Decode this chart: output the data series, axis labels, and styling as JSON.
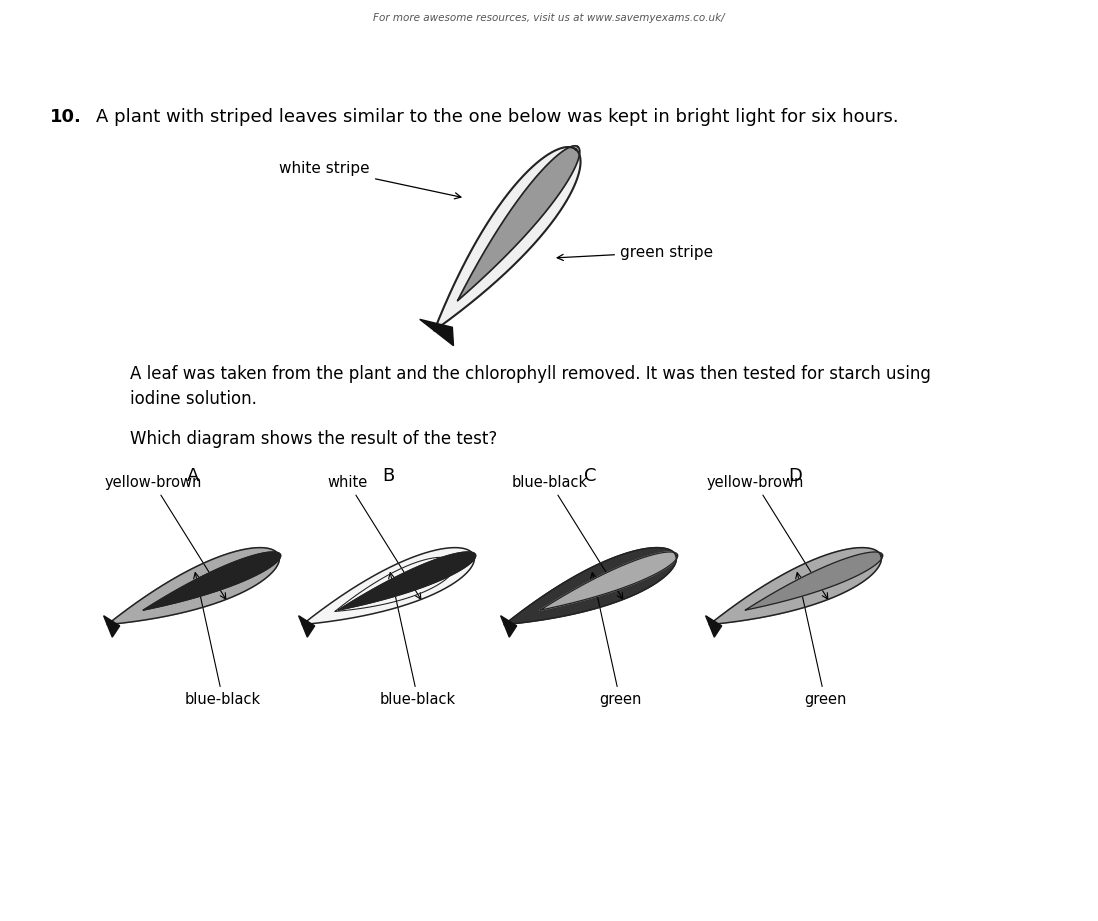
{
  "header_text": "For more awesome resources, visit us at www.savemyexams.co.uk/",
  "question_number": "10.",
  "question_text": "A plant with striped leaves similar to the one below was kept in bright light for six hours.",
  "para1": "A leaf was taken from the plant and the chlorophyll removed. It was then tested for starch using\niodine solution.",
  "para2": "Which diagram shows the result of the test?",
  "label_white_stripe": "white stripe",
  "label_green_stripe": "green stripe",
  "options": [
    "A",
    "B",
    "C",
    "D"
  ],
  "option_labels_top": [
    "yellow-brown",
    "white",
    "blue-black",
    "yellow-brown"
  ],
  "option_labels_bottom": [
    "blue-black",
    "blue-black",
    "green",
    "green"
  ],
  "bg_color": "#ffffff",
  "text_color": "#000000",
  "leaf_outer_A": "#aaaaaa",
  "leaf_inner_A": "#222222",
  "leaf_outer_B": "#f5f5f5",
  "leaf_inner_B": "#222222",
  "leaf_outer_C": "#333333",
  "leaf_inner_C": "#aaaaaa",
  "leaf_outer_D": "#aaaaaa",
  "leaf_inner_D": "#888888",
  "main_leaf_white": "#f0f0f0",
  "main_leaf_green": "#999999",
  "dark_tip": "#111111",
  "outline_color": "#222222"
}
